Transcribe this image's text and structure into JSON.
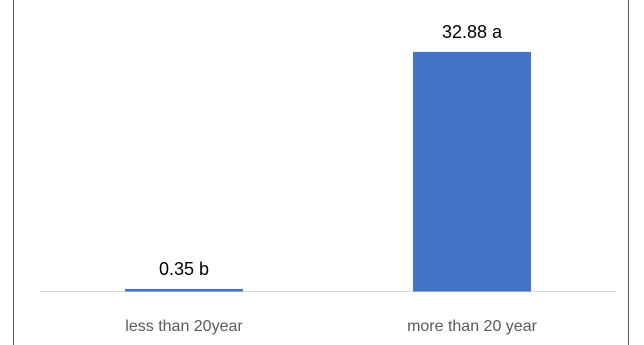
{
  "chart_data": {
    "type": "bar",
    "categories": [
      "less than 20year",
      "more than 20 year"
    ],
    "values": [
      0.35,
      32.88
    ],
    "data_labels": [
      "0.35 b",
      "32.88 a"
    ],
    "bar_color": "#4472C4",
    "axis_color": "#D9D9D9",
    "frame_color": "#595959",
    "title": "",
    "xlabel": "",
    "ylabel": "",
    "ylim": [
      0,
      40
    ],
    "grid": false,
    "legend": "none"
  }
}
